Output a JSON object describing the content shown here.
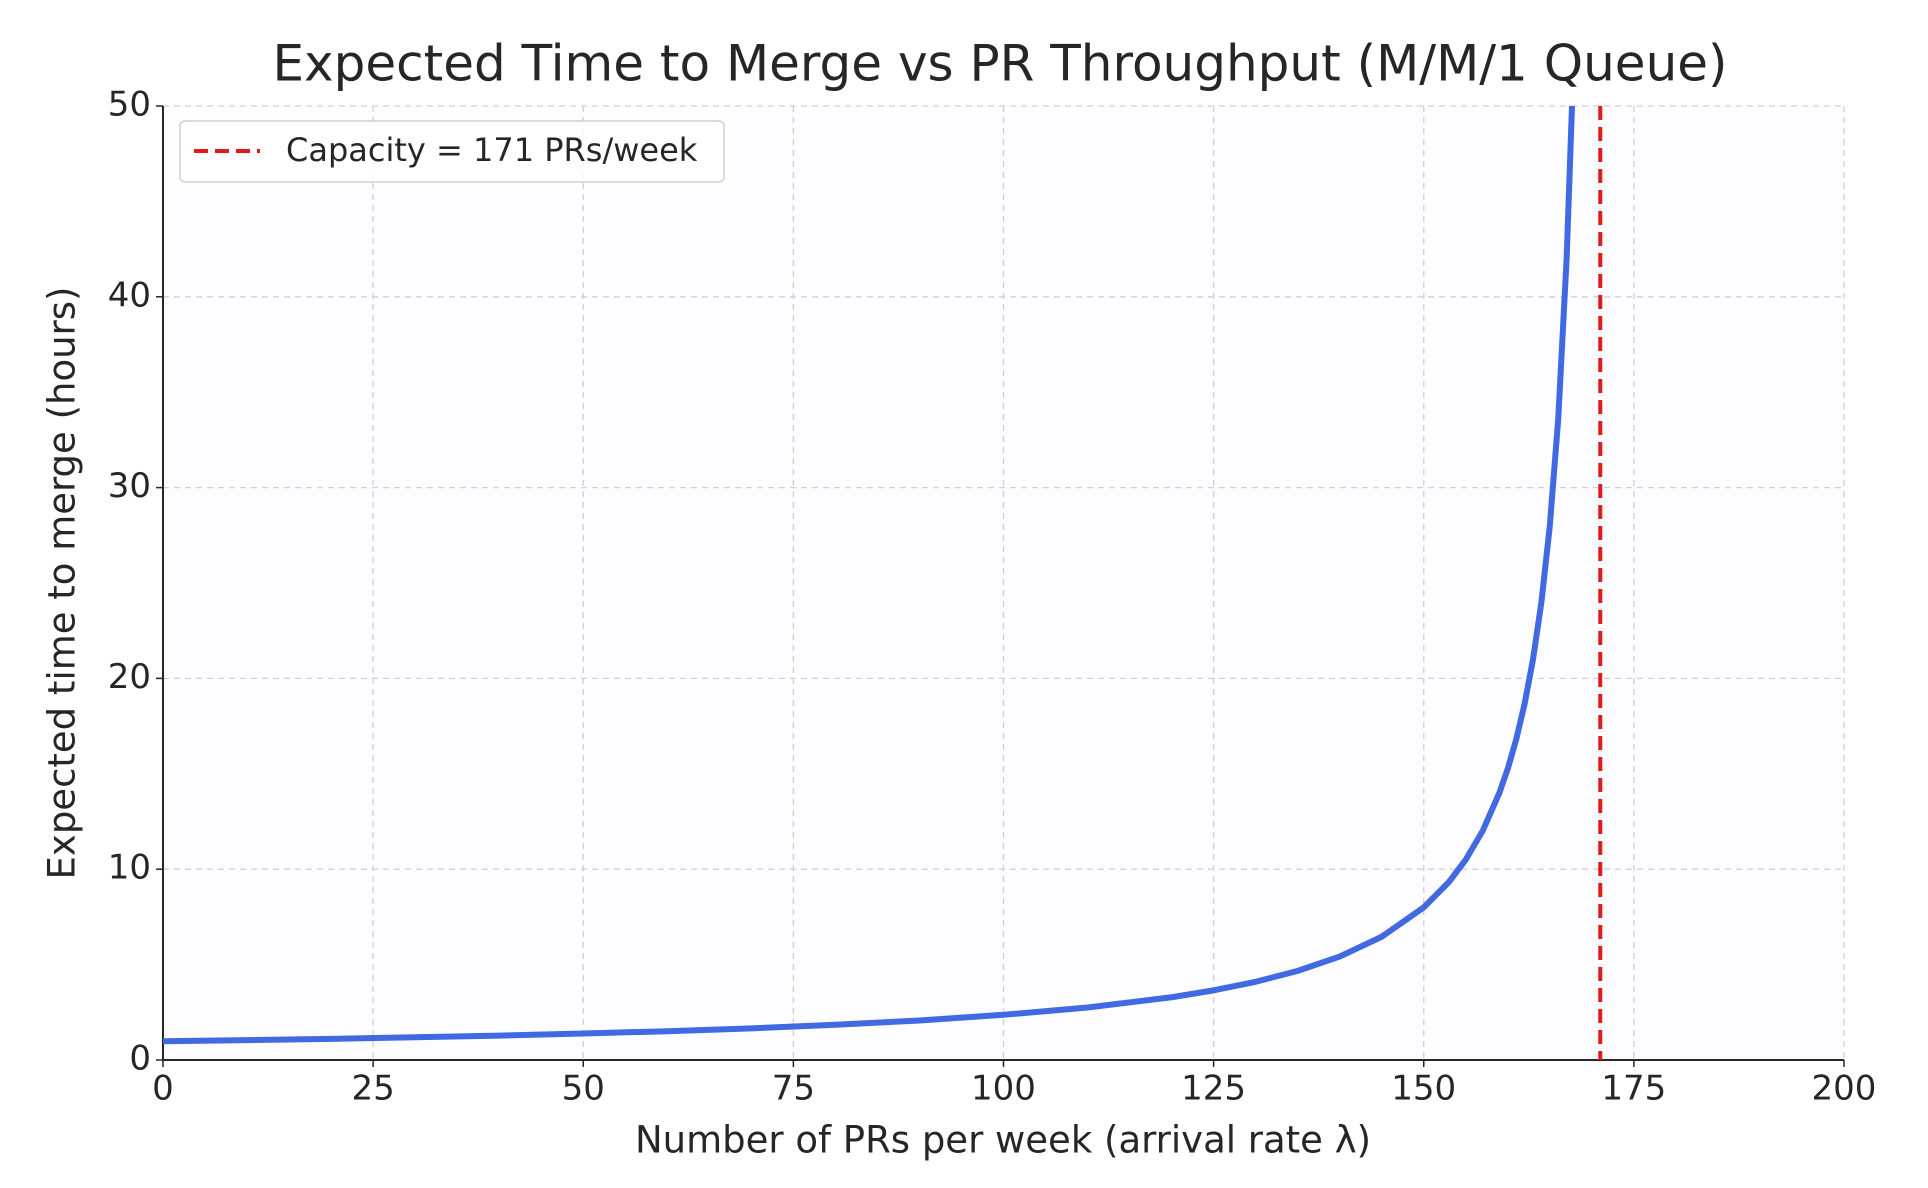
{
  "chart_data": {
    "type": "line",
    "title": "Expected Time to Merge vs PR Throughput (M/M/1 Queue)",
    "x_label": "Number of PRs per week (arrival rate λ)",
    "y_label": "Expected time to merge (hours)",
    "x": [
      0,
      10,
      20,
      30,
      40,
      50,
      60,
      70,
      80,
      90,
      100,
      110,
      120,
      125,
      130,
      135,
      140,
      145,
      150,
      153,
      155,
      157,
      159,
      160,
      161,
      162,
      163,
      164,
      165,
      166,
      167,
      167.64
    ],
    "series": [
      {
        "color": "#4169e1",
        "values": [
          0.98,
          1.04,
          1.11,
          1.19,
          1.28,
          1.39,
          1.51,
          1.66,
          1.85,
          2.07,
          2.37,
          2.75,
          3.29,
          3.65,
          4.1,
          4.67,
          5.42,
          6.46,
          8.0,
          9.33,
          10.5,
          12.0,
          14.0,
          15.27,
          16.8,
          18.67,
          21.0,
          24.0,
          28.0,
          33.6,
          42.0,
          50.0
        ]
      }
    ],
    "vline": {
      "x": 171,
      "label": "Capacity = 171 PRs/week",
      "color": "#e31a1c"
    },
    "xlim": [
      0,
      200
    ],
    "xticks": [
      0,
      25,
      50,
      75,
      100,
      125,
      150,
      175,
      200
    ],
    "ylim": [
      0,
      50
    ],
    "yticks": [
      0,
      10,
      20,
      30,
      40,
      50
    ],
    "grid": true,
    "legend": "upper-left"
  }
}
